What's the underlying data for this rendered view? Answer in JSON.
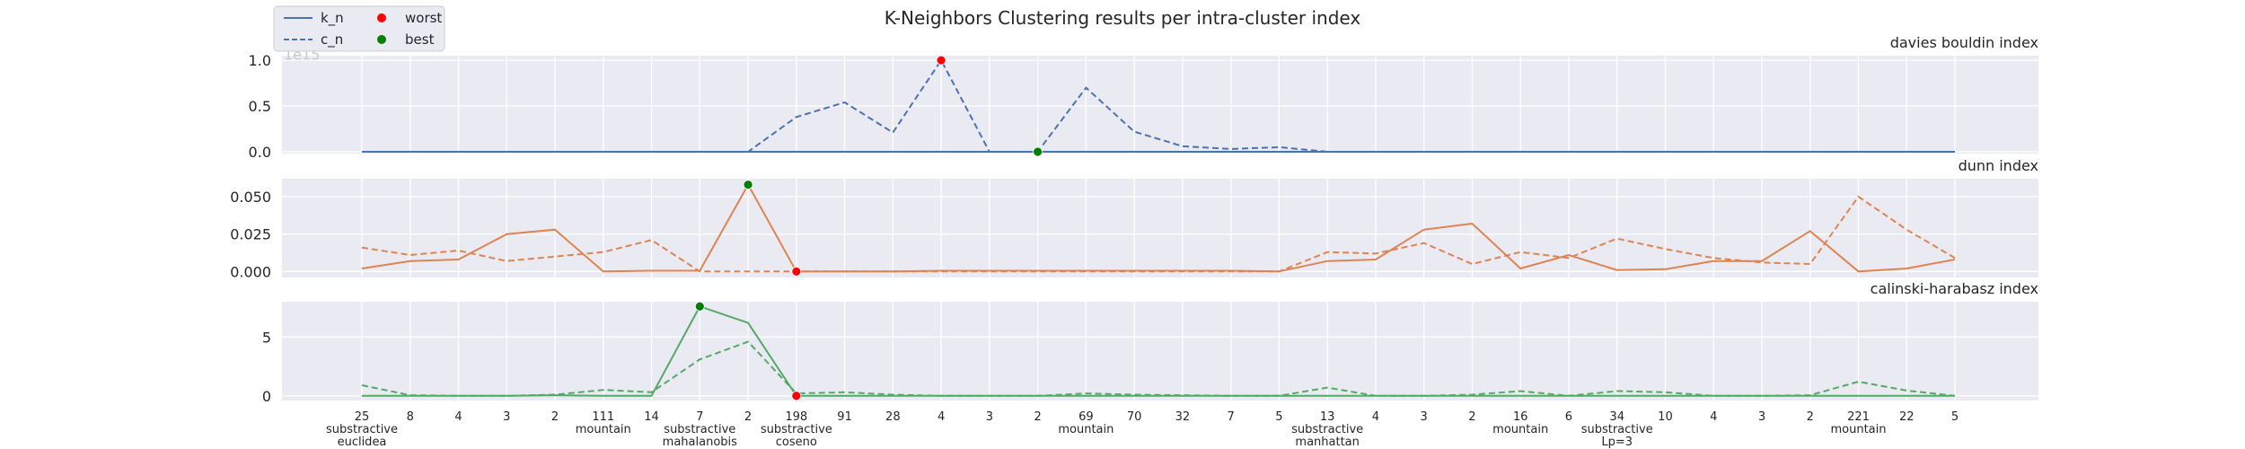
{
  "chart_data": {
    "type": "line",
    "title": "K-Neighbors Clustering results per intra-cluster index",
    "colors": {
      "davies": "#4c72b0",
      "dunn": "#dd8452",
      "calinski": "#55a868",
      "worst": "red",
      "best": "green"
    },
    "legend": {
      "placement": "top-left",
      "entries": [
        {
          "label": "k_n",
          "kind": "solid-line"
        },
        {
          "label": "c_n",
          "kind": "dashed-line"
        },
        {
          "label": "worst",
          "kind": "red-dot"
        },
        {
          "label": "best",
          "kind": "green-dot"
        }
      ]
    },
    "x_ticks": [
      "25",
      "8",
      "4",
      "3",
      "2",
      "111",
      "14",
      "7",
      "2",
      "198",
      "91",
      "28",
      "4",
      "3",
      "2",
      "69",
      "70",
      "32",
      "7",
      "5",
      "13",
      "4",
      "3",
      "2",
      "16",
      "6",
      "34",
      "10",
      "4",
      "3",
      "2",
      "221",
      "22",
      "5"
    ],
    "groups": [
      {
        "lines": [
          "substractive",
          "euclidea"
        ],
        "index": 0
      },
      {
        "lines": [
          "mountain"
        ],
        "index": 5
      },
      {
        "lines": [
          "substractive",
          "mahalanobis"
        ],
        "index": 7
      },
      {
        "lines": [
          "substractive",
          "coseno"
        ],
        "index": 9
      },
      {
        "lines": [
          "mountain"
        ],
        "index": 15
      },
      {
        "lines": [
          "substractive",
          "manhattan"
        ],
        "index": 20
      },
      {
        "lines": [
          "mountain"
        ],
        "index": 24
      },
      {
        "lines": [
          "substractive",
          "Lp=3"
        ],
        "index": 26
      },
      {
        "lines": [
          "mountain"
        ],
        "index": 31
      }
    ],
    "panels": [
      {
        "title": "davies bouldin index",
        "color_key": "davies",
        "offset_text": "1e15",
        "ylim": [
          -0.02,
          1.05
        ],
        "yticks": [
          0.0,
          0.5,
          1.0
        ],
        "ytick_labels": [
          "0.0",
          "0.5",
          "1.0"
        ],
        "k_n": [
          0,
          0,
          0,
          0,
          0,
          0,
          0,
          0,
          0,
          0,
          0,
          0,
          0,
          0,
          0,
          0,
          0,
          0,
          0,
          0,
          0,
          0,
          0,
          0,
          0,
          0,
          0,
          0,
          0,
          0,
          0,
          0,
          0,
          0
        ],
        "c_n": [
          0,
          0,
          0,
          0,
          0,
          0,
          0,
          0,
          0,
          0.38,
          0.54,
          0.21,
          1.0,
          0,
          0,
          0.7,
          0.22,
          0.06,
          0.03,
          0.05,
          0.0,
          0,
          0,
          0,
          0,
          0,
          0,
          0,
          0,
          0,
          0,
          0,
          0,
          0
        ],
        "worst": {
          "index": 12,
          "value": 1.0
        },
        "best": {
          "index": 14,
          "value": 0.0
        }
      },
      {
        "title": "dunn index",
        "color_key": "dunn",
        "offset_text": "",
        "ylim": [
          -0.004,
          0.062
        ],
        "yticks": [
          0.0,
          0.025,
          0.05
        ],
        "ytick_labels": [
          "0.000",
          "0.025",
          "0.050"
        ],
        "k_n": [
          0.002,
          0.007,
          0.008,
          0.025,
          0.028,
          0.0,
          0.0005,
          0.0005,
          0.058,
          0.0,
          0.0,
          0.0,
          0.0005,
          0.0005,
          0.0005,
          0.0005,
          0.0005,
          0.0005,
          0.0005,
          0.0,
          0.007,
          0.008,
          0.028,
          0.032,
          0.002,
          0.011,
          0.001,
          0.0015,
          0.007,
          0.007,
          0.027,
          0.0,
          0.002,
          0.008
        ],
        "c_n": [
          0.016,
          0.011,
          0.014,
          0.007,
          0.01,
          0.013,
          0.021,
          0.0,
          0.0,
          0.0,
          0.0,
          0.0,
          0.0,
          0.0,
          0.0,
          0.0,
          0.0,
          0.0,
          0.0,
          0.0,
          0.013,
          0.012,
          0.019,
          0.005,
          0.013,
          0.009,
          0.022,
          0.015,
          0.009,
          0.006,
          0.005,
          0.05,
          0.028,
          0.009
        ],
        "worst": {
          "index": 9,
          "value": 0.0
        },
        "best": {
          "index": 8,
          "value": 0.058
        }
      },
      {
        "title": "calinski-harabasz index",
        "color_key": "calinski",
        "offset_text": "",
        "ylim": [
          -0.4,
          8.0
        ],
        "yticks": [
          0,
          5
        ],
        "ytick_labels": [
          "0",
          "5"
        ],
        "k_n": [
          0.0,
          0.0,
          0.0,
          0.0,
          0.05,
          0.0,
          0.0,
          7.6,
          6.2,
          0.0,
          0.0,
          0.0,
          0.0,
          0.0,
          0.0,
          0.0,
          0.0,
          0.0,
          0.0,
          0.0,
          0.0,
          0.0,
          0.0,
          0.0,
          0.0,
          0.0,
          0.0,
          0.0,
          0.0,
          0.0,
          0.0,
          0.0,
          0.0,
          0.0
        ],
        "c_n": [
          0.9,
          0.05,
          0.0,
          0.0,
          0.1,
          0.5,
          0.3,
          3.1,
          4.6,
          0.2,
          0.3,
          0.1,
          0.0,
          0.0,
          0.0,
          0.2,
          0.1,
          0.05,
          0.0,
          0.0,
          0.7,
          0.0,
          0.0,
          0.1,
          0.4,
          0.0,
          0.4,
          0.3,
          0.0,
          0.0,
          0.05,
          1.2,
          0.45,
          0.0
        ],
        "worst": {
          "index": 9,
          "value": 0.0
        },
        "best": {
          "index": 7,
          "value": 7.6
        }
      }
    ]
  }
}
